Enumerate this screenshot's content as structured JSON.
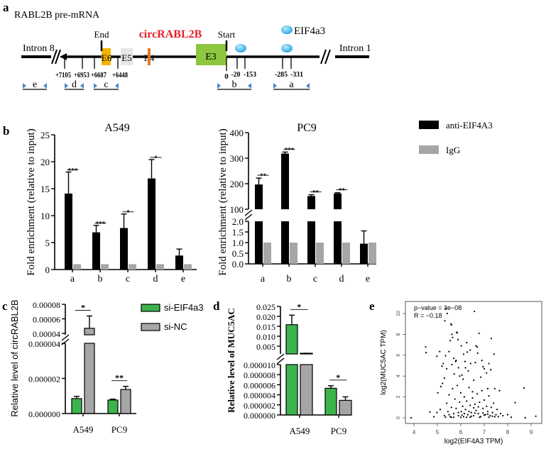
{
  "figure": {
    "panel_labels": [
      "a",
      "b",
      "c",
      "d",
      "e"
    ]
  },
  "diagram": {
    "title": "RABL2B pre-mRNA",
    "intron_left": "Intron 8",
    "intron_right": "Intron 1",
    "end_label": "End",
    "start_label": "Start",
    "circ_label": "circRABL2B",
    "circ_color": "#e8202a",
    "exons": [
      {
        "label": "E6",
        "color": "#f5b400"
      },
      {
        "label": "E5",
        "color": "#e6e6e6"
      },
      {
        "label": "E4",
        "color": "#e87722"
      },
      {
        "label": "E3",
        "color": "#8dc63f"
      }
    ],
    "eif_label": "EIF4a3",
    "eif_color": "#29a9e0",
    "positions_left": [
      "+7105",
      "+6953",
      "+6687",
      "+6448"
    ],
    "positions_right": [
      "0",
      "-20",
      "-153",
      "-285",
      "-331"
    ],
    "primers": [
      "e",
      "d",
      "c",
      "b",
      "a"
    ],
    "primer_color": "#4a86c5"
  },
  "legend_b": [
    {
      "label": "anti-EIF4A3",
      "color": "#000000"
    },
    {
      "label": "IgG",
      "color": "#a6a6a6"
    }
  ],
  "legend_c": [
    {
      "label": "si-EIF4a3",
      "color": "#3cb44b"
    },
    {
      "label": "si-NC",
      "color": "#a6a6a6"
    }
  ],
  "chart_data": [
    {
      "panel": "b",
      "type": "bar",
      "title": "A549",
      "ylabel": "Fold enrichment (relative to input)",
      "categories": [
        "a",
        "b",
        "c",
        "d",
        "e"
      ],
      "ylim": [
        0,
        25
      ],
      "yticks": [
        0,
        5,
        10,
        15,
        20,
        25
      ],
      "ytick_labels": [
        "0",
        "5",
        "10",
        "15",
        "20",
        "25"
      ],
      "series": [
        {
          "name": "anti-EIF4A3",
          "values": [
            14.1,
            6.9,
            7.7,
            16.9,
            2.6
          ],
          "errors": [
            4.0,
            1.3,
            2.6,
            3.5,
            1.2
          ]
        },
        {
          "name": "IgG",
          "values": [
            1,
            1,
            1,
            1,
            1
          ],
          "errors": [
            0,
            0,
            0,
            0,
            0
          ]
        }
      ],
      "significance": [
        "***",
        "***",
        "*",
        "*",
        ""
      ]
    },
    {
      "panel": "b",
      "type": "bar",
      "title": "PC9",
      "ylabel": "Fold enrichment (relative to input)",
      "categories": [
        "a",
        "b",
        "c",
        "d",
        "e"
      ],
      "broken_axis": true,
      "ylim_lower": [
        0,
        2
      ],
      "ylim_upper": [
        100,
        400
      ],
      "yticks_lower": [
        0,
        0.5,
        1,
        1.5,
        2
      ],
      "ytick_labels_lower": [
        "0.0",
        "0.5",
        "1.0",
        "1.5",
        "2.0"
      ],
      "yticks_upper": [
        100,
        200,
        300,
        400
      ],
      "ytick_labels_upper": [
        "100",
        "200",
        "300",
        "400"
      ],
      "series": [
        {
          "name": "anti-EIF4A3",
          "values": [
            197,
            318,
            152,
            162,
            0.95
          ],
          "errors": [
            25,
            6,
            5,
            3,
            0.6
          ]
        },
        {
          "name": "IgG",
          "values": [
            1,
            1,
            1,
            1,
            1
          ],
          "errors": [
            0,
            0,
            0,
            0,
            0
          ]
        }
      ],
      "significance": [
        "**",
        "***",
        "**",
        "**",
        ""
      ]
    },
    {
      "panel": "c",
      "type": "bar",
      "ylabel": "Relative level of circRABL2B",
      "categories": [
        "A549",
        "PC9"
      ],
      "broken_axis": true,
      "ylim_lower": [
        0,
        4e-06
      ],
      "ylim_upper": [
        4e-05,
        8e-05
      ],
      "yticks_lower": [
        0,
        2e-06,
        4e-06
      ],
      "ytick_labels_lower": [
        "0.000000",
        "0.000002",
        "0.000004"
      ],
      "yticks_upper": [
        4e-05,
        6e-05,
        8e-05
      ],
      "ytick_labels_upper": [
        "0.00004",
        "0.00006",
        "0.00008"
      ],
      "series": [
        {
          "name": "si-EIF4a3",
          "values": [
            8.5e-07,
            7.7e-07
          ],
          "errors": [
            1.3e-07,
            5e-08
          ]
        },
        {
          "name": "si-NC",
          "values": [
            4.7e-05,
            1.37e-06
          ],
          "errors": [
            1.7e-05,
            1.8e-07
          ]
        }
      ],
      "significance": [
        "*",
        "**"
      ],
      "legend_position": "top-right"
    },
    {
      "panel": "d",
      "type": "bar",
      "ylabel": "Relative level of MUC5AC",
      "categories": [
        "A549",
        "PC9"
      ],
      "broken_axis": true,
      "ylim_lower": [
        0,
        1e-05
      ],
      "ylim_upper": [
        0.001,
        0.025
      ],
      "yticks_lower": [
        0,
        2e-06,
        4e-06,
        6e-06,
        8e-06,
        1e-05
      ],
      "ytick_labels_lower": [
        "0.000000",
        "0.000002",
        "0.000004",
        "0.000006",
        "0.000008",
        "0.000010"
      ],
      "yticks_upper": [
        0.005,
        0.01,
        0.015,
        0.02,
        0.025
      ],
      "ytick_labels_upper": [
        "0.005",
        "0.010",
        "0.015",
        "0.020",
        "0.025"
      ],
      "series": [
        {
          "name": "si-EIF4a3",
          "values": [
            0.0158,
            5.3e-06
          ],
          "errors": [
            0.0048,
            5e-07
          ]
        },
        {
          "name": "si-NC",
          "values": [
            0.0012,
            2.9e-06
          ],
          "errors": [
            0.0002,
            7e-07
          ]
        }
      ],
      "significance": [
        "*",
        "*"
      ]
    },
    {
      "panel": "e",
      "type": "scatter",
      "xlabel": "log2(EIF4A3 TPM)",
      "ylabel": "log2(MUC5AC TPM)",
      "annotations": [
        "p−value = 3e−08",
        "R = −0.18"
      ],
      "xlim": [
        3.8,
        9.3
      ],
      "ylim": [
        -0.5,
        11
      ],
      "xticks": [
        4,
        5,
        6,
        7,
        8,
        9
      ],
      "yticks": [
        0,
        2,
        4,
        6,
        8,
        10
      ],
      "points": [
        [
          3.88,
          0
        ],
        [
          4.5,
          6.8
        ],
        [
          4.52,
          6.25
        ],
        [
          4.68,
          0.55
        ],
        [
          4.85,
          0.1
        ],
        [
          4.98,
          5.9
        ],
        [
          4.98,
          0.5
        ],
        [
          5.02,
          2.4
        ],
        [
          5.1,
          6.35
        ],
        [
          5.12,
          0.8
        ],
        [
          5.15,
          3.0
        ],
        [
          5.2,
          4.95
        ],
        [
          5.22,
          3.3
        ],
        [
          5.25,
          5.2
        ],
        [
          5.3,
          3.8
        ],
        [
          5.32,
          9.3
        ],
        [
          5.35,
          10.5
        ],
        [
          5.35,
          5.95
        ],
        [
          5.4,
          4.7
        ],
        [
          5.42,
          10.0
        ],
        [
          5.5,
          6.35
        ],
        [
          5.55,
          7.4
        ],
        [
          5.58,
          9.0
        ],
        [
          5.6,
          8.9
        ],
        [
          5.62,
          8.0
        ],
        [
          5.65,
          7.7
        ],
        [
          5.7,
          5.7
        ],
        [
          5.62,
          5.1
        ],
        [
          5.72,
          4.2
        ],
        [
          5.78,
          5.4
        ],
        [
          5.8,
          5.5
        ],
        [
          5.82,
          8.2
        ],
        [
          5.85,
          8.15
        ],
        [
          5.88,
          7.5
        ],
        [
          5.9,
          4.8
        ],
        [
          5.95,
          4.0
        ],
        [
          6.02,
          6.9
        ],
        [
          6.05,
          4.1
        ],
        [
          6.1,
          3.7
        ],
        [
          6.12,
          6.1
        ],
        [
          6.18,
          5.4
        ],
        [
          6.2,
          4.8
        ],
        [
          6.25,
          7.2
        ],
        [
          6.28,
          6.3
        ],
        [
          6.32,
          4.5
        ],
        [
          6.4,
          6.5
        ],
        [
          6.42,
          5.2
        ],
        [
          6.5,
          2.5
        ],
        [
          6.55,
          3.6
        ],
        [
          6.58,
          10.2
        ],
        [
          6.62,
          5.3
        ],
        [
          6.65,
          6.9
        ],
        [
          6.7,
          6.8
        ],
        [
          6.72,
          6.2
        ],
        [
          6.78,
          8.1
        ],
        [
          6.85,
          3.9
        ],
        [
          6.9,
          5.5
        ],
        [
          6.95,
          4.9
        ],
        [
          7.0,
          4.7
        ],
        [
          7.1,
          4.3
        ],
        [
          7.15,
          2.8
        ],
        [
          7.2,
          5.2
        ],
        [
          7.28,
          4.6
        ],
        [
          7.3,
          7.6
        ],
        [
          7.42,
          6.1
        ],
        [
          7.45,
          2.8
        ],
        [
          7.65,
          2.6
        ],
        [
          8.0,
          0.3
        ],
        [
          8.15,
          0.05
        ],
        [
          8.32,
          1.45
        ],
        [
          8.7,
          2.85
        ],
        [
          8.75,
          0
        ],
        [
          9.2,
          0.15
        ],
        [
          5.3,
          0.2
        ],
        [
          5.4,
          1.4
        ],
        [
          5.45,
          0.6
        ],
        [
          5.5,
          2.2
        ],
        [
          5.55,
          0.1
        ],
        [
          5.6,
          1.0
        ],
        [
          5.65,
          2.8
        ],
        [
          5.7,
          0.4
        ],
        [
          5.75,
          1.8
        ],
        [
          5.8,
          0.9
        ],
        [
          5.85,
          3.1
        ],
        [
          5.9,
          0.2
        ],
        [
          5.95,
          1.5
        ],
        [
          6.0,
          2.4
        ],
        [
          6.02,
          0.6
        ],
        [
          6.08,
          1.1
        ],
        [
          6.12,
          0.1
        ],
        [
          6.15,
          2.0
        ],
        [
          6.2,
          0.8
        ],
        [
          6.25,
          1.6
        ],
        [
          6.3,
          0.3
        ],
        [
          6.35,
          2.9
        ],
        [
          6.4,
          1.2
        ],
        [
          6.45,
          0.5
        ],
        [
          6.5,
          1.9
        ],
        [
          6.55,
          0.2
        ],
        [
          6.6,
          1.3
        ],
        [
          6.65,
          0.7
        ],
        [
          6.7,
          2.3
        ],
        [
          6.75,
          0.4
        ],
        [
          6.8,
          1.5
        ],
        [
          6.85,
          0.1
        ],
        [
          6.9,
          2.6
        ],
        [
          6.95,
          0.9
        ],
        [
          7.0,
          1.7
        ],
        [
          7.05,
          0.3
        ],
        [
          7.1,
          1.1
        ],
        [
          7.15,
          0.6
        ],
        [
          7.2,
          2.1
        ],
        [
          7.25,
          0.2
        ],
        [
          7.3,
          1.0
        ],
        [
          7.35,
          0.5
        ],
        [
          7.4,
          1.4
        ],
        [
          7.5,
          0.3
        ],
        [
          7.55,
          0.8
        ],
        [
          7.6,
          0.1
        ],
        [
          7.7,
          0.4
        ],
        [
          7.8,
          0.2
        ],
        [
          5.35,
          0.05
        ],
        [
          5.5,
          0.3
        ],
        [
          5.7,
          0.05
        ],
        [
          5.9,
          0.5
        ],
        [
          6.05,
          0.25
        ],
        [
          6.25,
          0.05
        ],
        [
          6.45,
          0.15
        ],
        [
          6.6,
          0.45
        ],
        [
          6.8,
          0.05
        ],
        [
          7.0,
          0.25
        ],
        [
          7.2,
          0.05
        ],
        [
          7.45,
          0.1
        ],
        [
          5.6,
          0.05
        ],
        [
          6.15,
          0.4
        ],
        [
          6.35,
          0.6
        ],
        [
          6.55,
          0.95
        ],
        [
          6.75,
          1.05
        ],
        [
          6.95,
          0.45
        ],
        [
          7.15,
          0.35
        ],
        [
          7.35,
          0.15
        ],
        [
          6.0,
          0.05
        ],
        [
          6.4,
          0.05
        ]
      ]
    }
  ]
}
